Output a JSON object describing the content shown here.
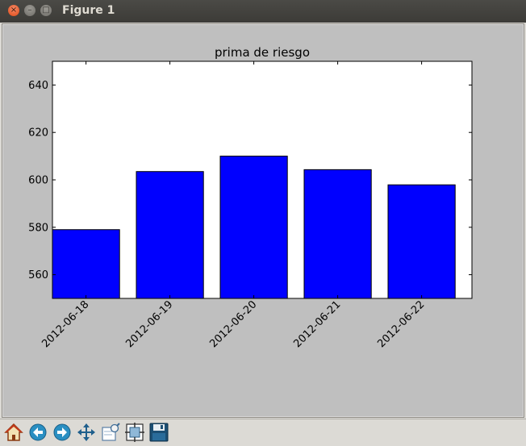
{
  "window": {
    "title": "Figure 1",
    "close_glyph": "×",
    "minimize_glyph": "–",
    "maximize_glyph": "□"
  },
  "toolbar": {
    "tools": [
      {
        "icon": "home-icon"
      },
      {
        "icon": "back-arrow-icon"
      },
      {
        "icon": "forward-arrow-icon"
      },
      {
        "icon": "pan-move-icon"
      },
      {
        "icon": "zoom-rect-icon"
      },
      {
        "icon": "subplots-config-icon"
      },
      {
        "icon": "save-floppy-icon"
      }
    ]
  },
  "chart_data": {
    "type": "bar",
    "title": "prima de riesgo",
    "xlabel": "",
    "ylabel": "",
    "categories": [
      "2012-06-18",
      "2012-06-19",
      "2012-06-20",
      "2012-06-21",
      "2012-06-22"
    ],
    "values": [
      579,
      603.5,
      610,
      604.3,
      597.9
    ],
    "ylim": [
      550,
      650
    ],
    "yticks": [
      560,
      580,
      600,
      620,
      640
    ],
    "bar_color": "#0000ff",
    "edge_color": "#000000",
    "grid": false,
    "legend": "none"
  }
}
